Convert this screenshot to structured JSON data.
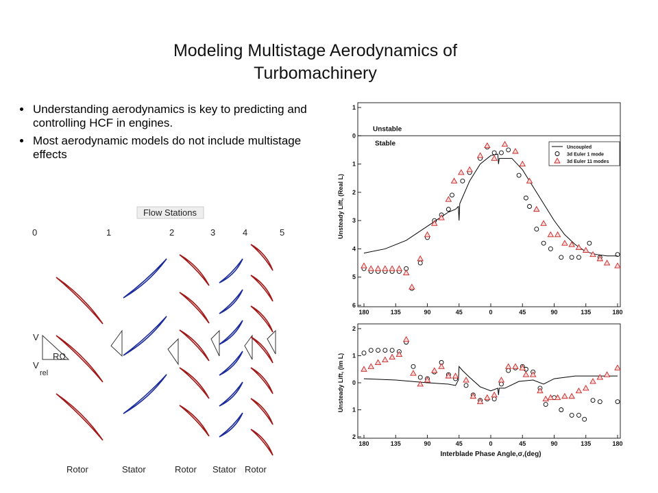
{
  "slide": {
    "title_lines": [
      "Modeling Multistage Aerodynamics of",
      "Turbomachinery"
    ],
    "bullets": [
      "Understanding aerodynamics is key to predicting and controlling HCF in engines.",
      "Most aerodynamic models do not include multistage effects"
    ]
  },
  "diagram": {
    "heading": "Flow Stations",
    "stations": [
      "0",
      "1",
      "2",
      "3",
      "4",
      "5"
    ],
    "velocity_labels": [
      "V",
      "RΩ",
      "V",
      "rel"
    ],
    "rows": [
      "Rotor",
      "Stator",
      "Rotor",
      "Stator",
      "Rotor"
    ]
  },
  "chart_data": [
    {
      "type": "scatter",
      "y_label": "Unsteady Lift, (Real L)",
      "annotations": [
        "Unstable",
        "Stable"
      ],
      "hline": 0,
      "legend": "upper right",
      "xlim": [
        -180,
        180
      ],
      "xticks": [
        {
          "value": -180,
          "label": "180"
        },
        {
          "value": -135,
          "label": "135"
        },
        {
          "value": -90,
          "label": "90"
        },
        {
          "value": -45,
          "label": "45"
        },
        0,
        45,
        90,
        135,
        180
      ],
      "ylim": [
        -6,
        1
      ],
      "yticks": [
        1,
        0,
        {
          "value": -1,
          "label": "1"
        },
        {
          "value": -2,
          "label": "2"
        },
        {
          "value": -3,
          "label": "3"
        },
        {
          "value": -4,
          "label": "4"
        },
        {
          "value": -5,
          "label": "5"
        },
        {
          "value": -6,
          "label": "6"
        }
      ],
      "series": [
        {
          "name": "Uncoupled",
          "style": "line",
          "color": "#000000",
          "x": [
            -180,
            -150,
            -120,
            -90,
            -75,
            -60,
            -50,
            -46,
            -45,
            -44,
            -30,
            -15,
            0,
            10,
            11,
            12,
            20,
            30,
            45,
            60,
            75,
            90,
            105,
            120,
            135,
            150,
            165,
            180
          ],
          "values": [
            -4.15,
            -4.0,
            -3.7,
            -3.2,
            -2.95,
            -2.7,
            -2.6,
            -2.5,
            -3.0,
            -2.4,
            -1.6,
            -1.0,
            -0.7,
            -0.65,
            -1.0,
            -0.8,
            -0.8,
            -0.8,
            -1.2,
            -1.8,
            -2.4,
            -3.0,
            -3.5,
            -3.85,
            -4.1,
            -4.2,
            -4.25,
            -4.25
          ]
        },
        {
          "name": "3d Euler 1 mode",
          "style": "circle",
          "color": "#000000",
          "x": [
            -180,
            -170,
            -160,
            -150,
            -140,
            -130,
            -120,
            -112,
            -100,
            -90,
            -80,
            -70,
            -60,
            -55,
            -40,
            -30,
            -15,
            -5,
            5,
            15,
            25,
            40,
            50,
            55,
            65,
            75,
            85,
            100,
            115,
            125,
            140,
            155,
            180
          ],
          "values": [
            -4.7,
            -4.8,
            -4.8,
            -4.8,
            -4.8,
            -4.8,
            -4.7,
            -5.4,
            -4.5,
            -3.6,
            -3.0,
            -2.8,
            -2.6,
            -2.1,
            -1.6,
            -1.3,
            -0.8,
            -0.4,
            -0.6,
            -0.6,
            -0.5,
            -1.4,
            -2.2,
            -2.5,
            -3.3,
            -3.8,
            -4.0,
            -4.3,
            -4.3,
            -4.3,
            -3.8,
            -4.3,
            -4.2
          ]
        },
        {
          "name": "3d Euler 11 modes",
          "style": "triangle",
          "color": "#cc2222",
          "x": [
            -180,
            -170,
            -160,
            -150,
            -140,
            -130,
            -120,
            -112,
            -100,
            -90,
            -80,
            -70,
            -60,
            -52,
            -42,
            -30,
            -15,
            -5,
            5,
            20,
            35,
            45,
            55,
            65,
            75,
            85,
            95,
            105,
            115,
            125,
            135,
            145,
            155,
            165,
            180
          ],
          "values": [
            -4.6,
            -4.7,
            -4.7,
            -4.7,
            -4.7,
            -4.7,
            -4.85,
            -5.35,
            -4.35,
            -3.5,
            -3.1,
            -2.9,
            -2.25,
            -1.6,
            -1.3,
            -1.2,
            -0.7,
            -0.35,
            -0.8,
            -0.3,
            -0.55,
            -1.0,
            -1.6,
            -2.6,
            -3.1,
            -3.5,
            -3.5,
            -3.8,
            -3.85,
            -3.95,
            -4.05,
            -4.2,
            -4.35,
            -4.5,
            -4.6
          ]
        }
      ]
    },
    {
      "type": "scatter",
      "y_label": "Unsteady Lift, (Im L)",
      "x_label": "Interblade Phase Angle,σ,(deg)",
      "xlim": [
        -180,
        180
      ],
      "xticks": [
        {
          "value": -180,
          "label": "180"
        },
        {
          "value": -135,
          "label": "135"
        },
        {
          "value": -90,
          "label": "90"
        },
        {
          "value": -45,
          "label": "45"
        },
        0,
        45,
        90,
        135,
        180
      ],
      "ylim": [
        -2,
        2
      ],
      "yticks": [
        2,
        1,
        0,
        {
          "value": -1,
          "label": "1"
        },
        {
          "value": -2,
          "label": "2"
        }
      ],
      "series": [
        {
          "style": "line",
          "color": "#000000",
          "x": [
            -180,
            -135,
            -90,
            -60,
            -50,
            -46,
            -45,
            -40,
            -30,
            -15,
            0,
            10,
            11,
            12,
            20,
            40,
            60,
            75,
            90,
            120,
            150,
            180
          ],
          "values": [
            0.15,
            0.1,
            0.0,
            -0.05,
            -0.1,
            0.1,
            0.6,
            0.45,
            0.2,
            -0.15,
            -0.3,
            -0.2,
            -0.45,
            -0.2,
            -0.2,
            0.05,
            0.1,
            -0.05,
            0.15,
            0.25,
            0.25,
            0.25
          ]
        },
        {
          "style": "circle",
          "color": "#000000",
          "x": [
            -180,
            -170,
            -160,
            -150,
            -140,
            -130,
            -120,
            -110,
            -100,
            -90,
            -80,
            -70,
            -60,
            -50,
            -35,
            -25,
            -15,
            -5,
            5,
            15,
            25,
            35,
            45,
            50,
            60,
            70,
            78,
            90,
            100,
            115,
            125,
            133,
            145,
            155,
            180
          ],
          "values": [
            1.1,
            1.2,
            1.2,
            1.2,
            1.2,
            1.15,
            1.5,
            0.6,
            0.2,
            0.15,
            0.4,
            0.75,
            0.3,
            0.15,
            -0.1,
            -0.45,
            -0.65,
            -0.6,
            -0.6,
            -0.05,
            0.45,
            0.55,
            0.6,
            0.5,
            0.4,
            -0.2,
            -0.8,
            -0.55,
            -1.0,
            -1.2,
            -1.2,
            -1.35,
            -0.65,
            -0.7,
            -0.7
          ]
        },
        {
          "style": "triangle",
          "color": "#cc2222",
          "x": [
            -180,
            -170,
            -160,
            -150,
            -140,
            -130,
            -120,
            -110,
            -100,
            -90,
            -80,
            -70,
            -60,
            -50,
            -35,
            -25,
            -15,
            -5,
            5,
            15,
            25,
            35,
            45,
            50,
            60,
            70,
            78,
            85,
            95,
            105,
            115,
            125,
            135,
            145,
            155,
            165,
            180
          ],
          "values": [
            0.5,
            0.6,
            0.75,
            0.85,
            0.95,
            1.05,
            1.6,
            0.35,
            -0.05,
            0.1,
            0.45,
            0.6,
            0.25,
            0.25,
            0.1,
            -0.5,
            -0.7,
            -0.55,
            -0.45,
            0.1,
            0.6,
            0.6,
            0.55,
            0.3,
            0.3,
            -0.3,
            -0.6,
            -0.55,
            -0.55,
            -0.5,
            -0.5,
            -0.3,
            -0.2,
            0.05,
            0.2,
            0.3,
            0.55
          ]
        }
      ]
    }
  ]
}
